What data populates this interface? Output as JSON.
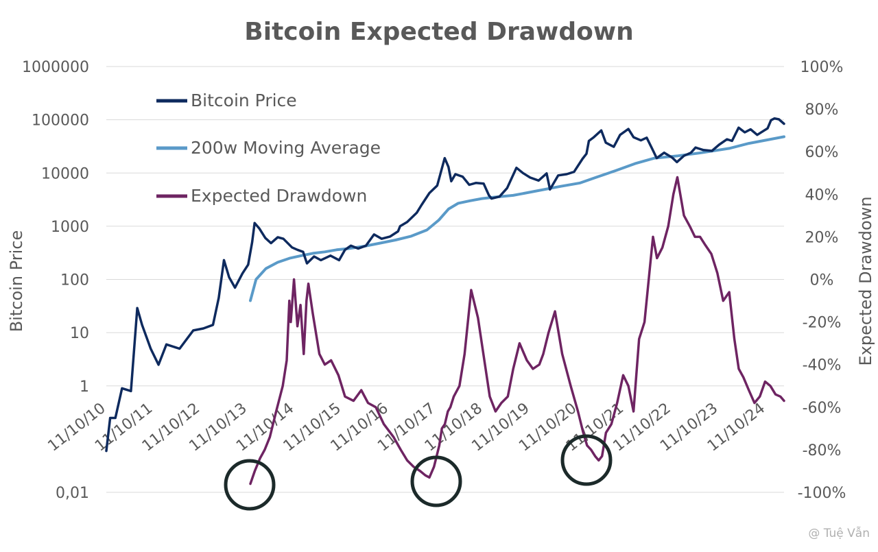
{
  "chart_data": {
    "type": "line",
    "title": "Bitcoin Expected Drawdown",
    "ylabel": "Bitcoin Price",
    "y2label": "Expected Drawdown",
    "y_scale": "log",
    "ylim": [
      0.01,
      1000000
    ],
    "y_ticks": [
      "1000000",
      "100000",
      "10000",
      "1000",
      "100",
      "10",
      "1",
      "0,01"
    ],
    "y2lim": [
      -100,
      100
    ],
    "y2_ticks": [
      "100%",
      "80%",
      "60%",
      "40%",
      "20%",
      "0%",
      "-20%",
      "-40%",
      "-60%",
      "-80%",
      "-100%"
    ],
    "x_ticks": [
      "11/10/10",
      "11/10/11",
      "11/10/12",
      "11/10/13",
      "11/10/14",
      "11/10/15",
      "11/10/16",
      "11/10/17",
      "11/10/18",
      "11/10/19",
      "11/10/20",
      "11/10/21",
      "11/10/22",
      "11/10/23",
      "11/10/24"
    ],
    "xlim": [
      "2010-10-11",
      "2025-03-01"
    ],
    "legend_position": "top-left",
    "series": [
      {
        "name": "Bitcoin Price",
        "axis": "left",
        "color": "#0e2a5e",
        "x": [
          "2010-10-11",
          "2010-11-10",
          "2010-12-20",
          "2011-02-10",
          "2011-04-20",
          "2011-06-08",
          "2011-07-15",
          "2011-09-20",
          "2011-11-20",
          "2012-01-20",
          "2012-05-01",
          "2012-08-15",
          "2012-11-01",
          "2013-01-15",
          "2013-03-01",
          "2013-04-10",
          "2013-05-20",
          "2013-07-05",
          "2013-09-01",
          "2013-10-15",
          "2013-11-15",
          "2013-12-04",
          "2014-01-10",
          "2014-02-25",
          "2014-04-10",
          "2014-06-01",
          "2014-07-15",
          "2014-09-20",
          "2014-11-01",
          "2014-12-15",
          "2015-01-14",
          "2015-03-10",
          "2015-05-01",
          "2015-07-15",
          "2015-09-20",
          "2015-11-05",
          "2015-12-20",
          "2016-02-15",
          "2016-04-15",
          "2016-06-17",
          "2016-08-15",
          "2016-10-20",
          "2016-12-20",
          "2017-01-05",
          "2017-03-01",
          "2017-05-15",
          "2017-06-20",
          "2017-08-20",
          "2017-10-20",
          "2017-12-17",
          "2018-01-15",
          "2018-02-06",
          "2018-03-10",
          "2018-05-05",
          "2018-06-25",
          "2018-08-15",
          "2018-10-15",
          "2018-11-25",
          "2018-12-15",
          "2019-02-15",
          "2019-04-15",
          "2019-06-26",
          "2019-08-15",
          "2019-10-10",
          "2019-12-15",
          "2020-02-15",
          "2020-03-12",
          "2020-05-15",
          "2020-07-20",
          "2020-09-15",
          "2020-11-20",
          "2020-12-20",
          "2021-01-08",
          "2021-02-15",
          "2021-04-14",
          "2021-05-19",
          "2021-07-20",
          "2021-09-07",
          "2021-11-10",
          "2021-12-20",
          "2022-02-15",
          "2022-04-01",
          "2022-05-12",
          "2022-06-18",
          "2022-08-15",
          "2022-10-15",
          "2022-11-21",
          "2023-01-15",
          "2023-03-10",
          "2023-04-15",
          "2023-06-15",
          "2023-08-20",
          "2023-10-15",
          "2023-12-15",
          "2024-01-23",
          "2024-03-14",
          "2024-05-01",
          "2024-06-15",
          "2024-08-05",
          "2024-09-15",
          "2024-10-25",
          "2024-11-20",
          "2024-12-17",
          "2025-01-20",
          "2025-03-01"
        ],
        "values": [
          0.06,
          0.25,
          0.25,
          0.9,
          0.8,
          29,
          14,
          5,
          2.5,
          6,
          5,
          11,
          12,
          14,
          45,
          230,
          110,
          70,
          130,
          190,
          500,
          1150,
          900,
          600,
          480,
          620,
          580,
          400,
          360,
          330,
          200,
          270,
          230,
          280,
          230,
          360,
          430,
          380,
          430,
          700,
          580,
          640,
          800,
          1000,
          1200,
          1800,
          2500,
          4200,
          5800,
          19000,
          13000,
          7000,
          9500,
          8500,
          6000,
          6500,
          6300,
          3800,
          3300,
          3600,
          5200,
          12500,
          10000,
          8200,
          7200,
          9800,
          4900,
          9000,
          9500,
          10500,
          18500,
          23000,
          40000,
          47000,
          63000,
          37000,
          31000,
          52000,
          67000,
          47000,
          41000,
          46000,
          29000,
          19000,
          24000,
          19500,
          16000,
          21000,
          24000,
          30000,
          27000,
          26000,
          34000,
          43000,
          40000,
          71000,
          58000,
          66000,
          52000,
          60000,
          69000,
          98000,
          106000,
          102000,
          84000
        ]
      },
      {
        "name": "200w Moving Average",
        "axis": "left",
        "color": "#5a9ac8",
        "x": [
          "2013-11-01",
          "2013-12-15",
          "2014-03-01",
          "2014-06-01",
          "2014-09-01",
          "2014-12-01",
          "2015-03-01",
          "2015-06-01",
          "2015-09-01",
          "2015-12-01",
          "2016-04-01",
          "2016-08-01",
          "2016-12-01",
          "2017-04-01",
          "2017-08-01",
          "2017-11-01",
          "2018-01-15",
          "2018-04-01",
          "2018-07-01",
          "2018-10-01",
          "2019-01-01",
          "2019-06-01",
          "2019-12-01",
          "2020-06-01",
          "2020-11-01",
          "2021-03-01",
          "2021-08-01",
          "2022-01-01",
          "2022-06-01",
          "2022-12-01",
          "2023-06-01",
          "2024-01-01",
          "2024-06-01",
          "2025-03-01"
        ],
        "values": [
          40,
          100,
          160,
          210,
          250,
          280,
          310,
          330,
          360,
          380,
          420,
          480,
          550,
          650,
          850,
          1300,
          2100,
          2700,
          3000,
          3300,
          3500,
          3800,
          4600,
          5600,
          6500,
          8200,
          11000,
          15000,
          19000,
          21000,
          24000,
          29000,
          36000,
          48000
        ]
      },
      {
        "name": "Expected Drawdown",
        "axis": "right",
        "color": "#6e2462",
        "x": [
          "2013-11-01",
          "2013-12-05",
          "2014-01-15",
          "2014-02-20",
          "2014-04-01",
          "2014-05-20",
          "2014-07-10",
          "2014-08-10",
          "2014-08-30",
          "2014-09-10",
          "2014-10-05",
          "2014-11-01",
          "2014-11-25",
          "2014-12-20",
          "2015-01-10",
          "2015-01-25",
          "2015-02-28",
          "2015-04-20",
          "2015-06-01",
          "2015-07-20",
          "2015-09-15",
          "2015-11-05",
          "2016-01-10",
          "2016-03-10",
          "2016-05-01",
          "2016-06-30",
          "2016-09-01",
          "2016-11-15",
          "2017-01-10",
          "2017-03-01",
          "2017-04-20",
          "2017-06-10",
          "2017-07-20",
          "2017-08-20",
          "2017-09-25",
          "2017-11-05",
          "2017-11-25",
          "2017-12-18",
          "2018-01-10",
          "2018-01-30",
          "2018-02-25",
          "2018-04-10",
          "2018-05-20",
          "2018-07-10",
          "2018-09-01",
          "2018-10-20",
          "2018-12-01",
          "2019-01-15",
          "2019-03-01",
          "2019-04-20",
          "2019-06-01",
          "2019-07-20",
          "2019-09-15",
          "2019-11-01",
          "2019-12-20",
          "2020-01-20",
          "2020-03-01",
          "2020-04-20",
          "2020-06-15",
          "2020-08-20",
          "2020-10-15",
          "2020-11-25",
          "2020-12-25",
          "2021-01-25",
          "2021-02-25",
          "2021-03-25",
          "2021-04-20",
          "2021-05-20",
          "2021-07-01",
          "2021-08-15",
          "2021-10-01",
          "2021-11-10",
          "2021-12-20",
          "2022-02-01",
          "2022-03-15",
          "2022-04-25",
          "2022-05-20",
          "2022-06-20",
          "2022-08-01",
          "2022-09-15",
          "2022-10-25",
          "2022-11-25",
          "2023-01-15",
          "2023-03-01",
          "2023-04-10",
          "2023-05-20",
          "2023-07-01",
          "2023-08-15",
          "2023-10-01",
          "2023-11-15",
          "2024-01-01",
          "2024-02-10",
          "2024-03-15",
          "2024-04-20",
          "2024-06-01",
          "2024-07-15",
          "2024-08-25",
          "2024-10-05",
          "2024-11-15",
          "2024-12-25",
          "2025-02-01",
          "2025-03-01"
        ],
        "values": [
          -96,
          -90,
          -84,
          -80,
          -74,
          -62,
          -50,
          -38,
          -10,
          -20,
          0,
          -22,
          -12,
          -35,
          -10,
          -2,
          -16,
          -35,
          -40,
          -38,
          -45,
          -55,
          -57,
          -52,
          -58,
          -60,
          -68,
          -74,
          -80,
          -85,
          -88,
          -90,
          -92,
          -93,
          -88,
          -78,
          -70,
          -68,
          -62,
          -60,
          -55,
          -50,
          -35,
          -5,
          -18,
          -38,
          -55,
          -62,
          -58,
          -55,
          -42,
          -30,
          -38,
          -42,
          -40,
          -35,
          -25,
          -15,
          -35,
          -50,
          -62,
          -72,
          -78,
          -80,
          -83,
          -85,
          -83,
          -72,
          -68,
          -58,
          -45,
          -50,
          -62,
          -28,
          -20,
          5,
          20,
          10,
          15,
          25,
          40,
          48,
          30,
          25,
          20,
          20,
          16,
          12,
          3,
          -10,
          -6,
          -28,
          -42,
          -46,
          -52,
          -58,
          -55,
          -48,
          -50,
          -54,
          -55,
          -57
        ]
      }
    ]
  },
  "watermark": "@ Tuệ Vẫn"
}
